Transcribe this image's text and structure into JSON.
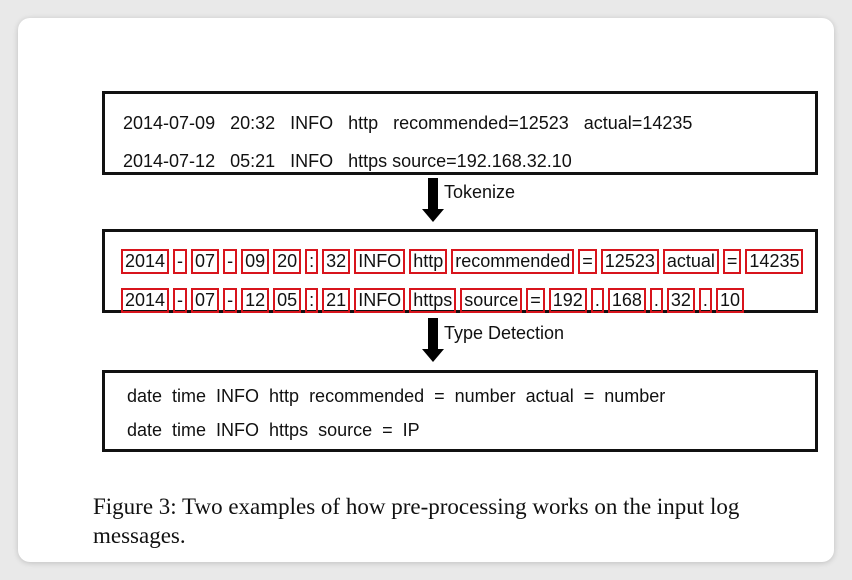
{
  "raw_logs": {
    "line1": "2014-07-09   20:32   INFO   http   recommended=12523   actual=14235",
    "line2": "2014-07-12   05:21   INFO   https source=192.168.32.10"
  },
  "steps": {
    "tokenize": "Tokenize",
    "type_detection": "Type Detection"
  },
  "tokenized": {
    "line1": [
      "2014",
      "-",
      "07",
      "-",
      "09",
      "20",
      ":",
      "32",
      "INFO",
      "http",
      "recommended",
      "=",
      "12523",
      "actual",
      "=",
      "14235"
    ],
    "line2": [
      "2014",
      "-",
      "07",
      "-",
      "12",
      "05",
      ":",
      "21",
      "INFO",
      "https",
      "source",
      "=",
      "192",
      ".",
      "168",
      ".",
      "32",
      ".",
      "10"
    ]
  },
  "typed": {
    "line1": "date  time  INFO  http  recommended  =  number  actual  =  number",
    "line2": "date  time  INFO  https  source  =  IP"
  },
  "caption": "Figure 3: Two examples of how pre-processing works on the input log messages.",
  "colors": {
    "token_border": "#d8141c",
    "box_border": "#111111"
  }
}
